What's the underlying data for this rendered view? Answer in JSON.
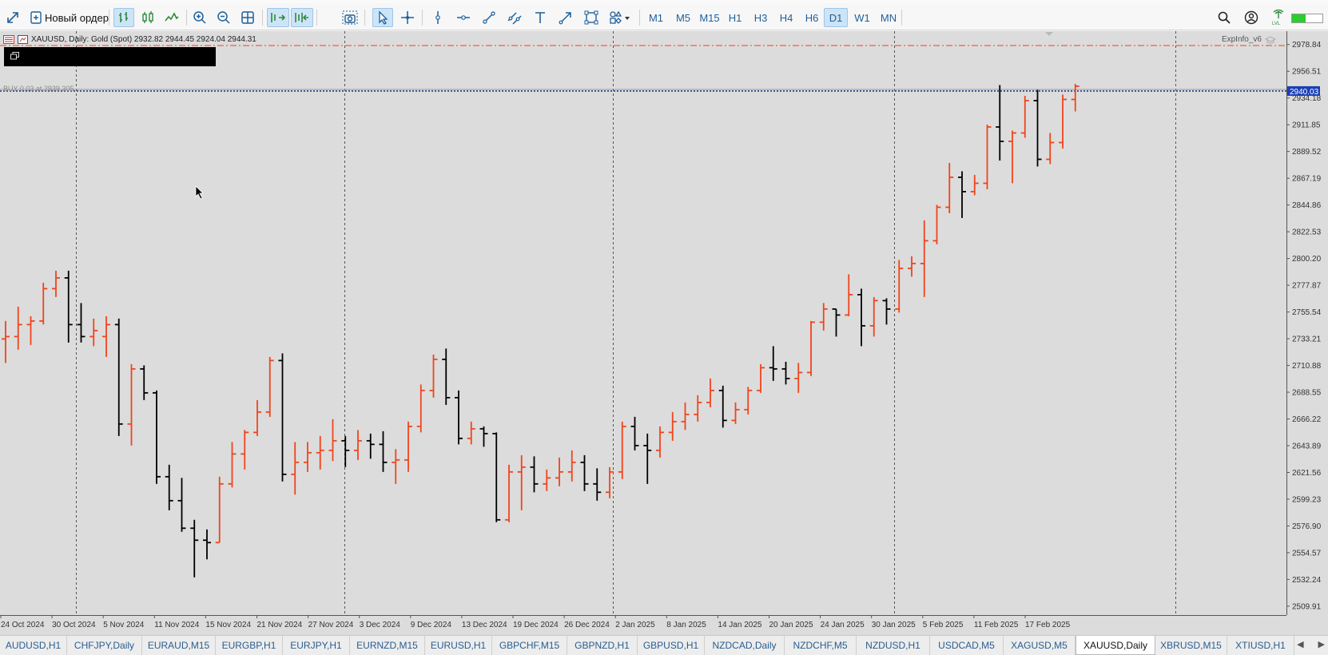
{
  "toolbar": {
    "new_order_label": "Новый ордер",
    "timeframes": [
      "M1",
      "M5",
      "M15",
      "H1",
      "H3",
      "H4",
      "H6",
      "D1",
      "W1",
      "MN"
    ],
    "active_timeframe": "D1"
  },
  "chart": {
    "symbol_info": "XAUUSD, Daily:  Gold (Spot)  2932.82 2944.45 2924.04 2944.31",
    "indicator_label": "ExpInfo_v6",
    "position_label": "BUY 0.03 at 2939.305",
    "current_price": "2940.03",
    "price_levels": [
      "2978.84",
      "2956.51",
      "2934.18",
      "2911.85",
      "2889.52",
      "2867.19",
      "2844.86",
      "2822.53",
      "2800.20",
      "2777.87",
      "2755.54",
      "2733.21",
      "2710.88",
      "2688.55",
      "2666.22",
      "2643.89",
      "2621.56",
      "2599.23",
      "2576.90",
      "2554.57",
      "2532.24",
      "2509.91"
    ],
    "date_labels": [
      "24 Oct 2024",
      "30 Oct 2024",
      "5 Nov 2024",
      "11 Nov 2024",
      "15 Nov 2024",
      "21 Nov 2024",
      "27 Nov 2024",
      "3 Dec 2024",
      "9 Dec 2024",
      "13 Dec 2024",
      "19 Dec 2024",
      "26 Dec 2024",
      "2 Jan 2025",
      "8 Jan 2025",
      "14 Jan 2025",
      "20 Jan 2025",
      "24 Jan 2025",
      "30 Jan 2025",
      "5 Feb 2025",
      "11 Feb 2025",
      "17 Feb 2025"
    ],
    "colors": {
      "bull": "#f0441c",
      "bear": "#000000",
      "background": "#dcdcdc",
      "current_price_line": "#1a3a8a",
      "target_line": "#f0441c"
    }
  },
  "chart_data": {
    "type": "ohlc",
    "symbol": "XAUUSD",
    "timeframe": "Daily",
    "ylim": [
      2500,
      2990
    ],
    "target_level": 2978,
    "current_price": 2940.03,
    "bars": [
      {
        "o": 2733,
        "h": 2748,
        "l": 2713,
        "c": 2735
      },
      {
        "o": 2735,
        "h": 2760,
        "l": 2724,
        "c": 2745
      },
      {
        "o": 2745,
        "h": 2752,
        "l": 2728,
        "c": 2748
      },
      {
        "o": 2748,
        "h": 2780,
        "l": 2745,
        "c": 2775
      },
      {
        "o": 2775,
        "h": 2790,
        "l": 2768,
        "c": 2784
      },
      {
        "o": 2784,
        "h": 2790,
        "l": 2730,
        "c": 2745
      },
      {
        "o": 2745,
        "h": 2763,
        "l": 2730,
        "c": 2735
      },
      {
        "o": 2735,
        "h": 2750,
        "l": 2727,
        "c": 2740
      },
      {
        "o": 2735,
        "h": 2752,
        "l": 2718,
        "c": 2745
      },
      {
        "o": 2745,
        "h": 2750,
        "l": 2652,
        "c": 2662
      },
      {
        "o": 2662,
        "h": 2712,
        "l": 2644,
        "c": 2708
      },
      {
        "o": 2708,
        "h": 2711,
        "l": 2682,
        "c": 2688
      },
      {
        "o": 2688,
        "h": 2690,
        "l": 2612,
        "c": 2618
      },
      {
        "o": 2618,
        "h": 2628,
        "l": 2590,
        "c": 2598
      },
      {
        "o": 2598,
        "h": 2617,
        "l": 2572,
        "c": 2575
      },
      {
        "o": 2575,
        "h": 2582,
        "l": 2534,
        "c": 2565
      },
      {
        "o": 2565,
        "h": 2574,
        "l": 2549,
        "c": 2563
      },
      {
        "o": 2563,
        "h": 2618,
        "l": 2563,
        "c": 2612
      },
      {
        "o": 2612,
        "h": 2647,
        "l": 2609,
        "c": 2637
      },
      {
        "o": 2637,
        "h": 2657,
        "l": 2624,
        "c": 2655
      },
      {
        "o": 2655,
        "h": 2682,
        "l": 2652,
        "c": 2672
      },
      {
        "o": 2672,
        "h": 2718,
        "l": 2668,
        "c": 2715
      },
      {
        "o": 2715,
        "h": 2721,
        "l": 2614,
        "c": 2620
      },
      {
        "o": 2620,
        "h": 2647,
        "l": 2603,
        "c": 2630
      },
      {
        "o": 2630,
        "h": 2647,
        "l": 2622,
        "c": 2638
      },
      {
        "o": 2638,
        "h": 2652,
        "l": 2624,
        "c": 2640
      },
      {
        "o": 2640,
        "h": 2666,
        "l": 2631,
        "c": 2648
      },
      {
        "o": 2648,
        "h": 2652,
        "l": 2626,
        "c": 2640
      },
      {
        "o": 2640,
        "h": 2657,
        "l": 2632,
        "c": 2648
      },
      {
        "o": 2648,
        "h": 2654,
        "l": 2633,
        "c": 2645
      },
      {
        "o": 2645,
        "h": 2656,
        "l": 2622,
        "c": 2630
      },
      {
        "o": 2630,
        "h": 2641,
        "l": 2612,
        "c": 2632
      },
      {
        "o": 2632,
        "h": 2664,
        "l": 2622,
        "c": 2660
      },
      {
        "o": 2660,
        "h": 2695,
        "l": 2655,
        "c": 2690
      },
      {
        "o": 2690,
        "h": 2720,
        "l": 2684,
        "c": 2716
      },
      {
        "o": 2716,
        "h": 2725,
        "l": 2678,
        "c": 2684
      },
      {
        "o": 2684,
        "h": 2690,
        "l": 2645,
        "c": 2650
      },
      {
        "o": 2650,
        "h": 2664,
        "l": 2645,
        "c": 2658
      },
      {
        "o": 2658,
        "h": 2660,
        "l": 2643,
        "c": 2654
      },
      {
        "o": 2654,
        "h": 2655,
        "l": 2580,
        "c": 2582
      },
      {
        "o": 2582,
        "h": 2628,
        "l": 2580,
        "c": 2622
      },
      {
        "o": 2622,
        "h": 2636,
        "l": 2590,
        "c": 2626
      },
      {
        "o": 2626,
        "h": 2635,
        "l": 2605,
        "c": 2612
      },
      {
        "o": 2612,
        "h": 2624,
        "l": 2606,
        "c": 2617
      },
      {
        "o": 2617,
        "h": 2634,
        "l": 2610,
        "c": 2622
      },
      {
        "o": 2622,
        "h": 2640,
        "l": 2614,
        "c": 2630
      },
      {
        "o": 2630,
        "h": 2636,
        "l": 2606,
        "c": 2612
      },
      {
        "o": 2612,
        "h": 2625,
        "l": 2598,
        "c": 2605
      },
      {
        "o": 2605,
        "h": 2626,
        "l": 2600,
        "c": 2622
      },
      {
        "o": 2622,
        "h": 2664,
        "l": 2616,
        "c": 2660
      },
      {
        "o": 2660,
        "h": 2668,
        "l": 2640,
        "c": 2644
      },
      {
        "o": 2644,
        "h": 2654,
        "l": 2612,
        "c": 2640
      },
      {
        "o": 2640,
        "h": 2660,
        "l": 2634,
        "c": 2655
      },
      {
        "o": 2655,
        "h": 2672,
        "l": 2648,
        "c": 2664
      },
      {
        "o": 2664,
        "h": 2680,
        "l": 2657,
        "c": 2670
      },
      {
        "o": 2670,
        "h": 2686,
        "l": 2664,
        "c": 2680
      },
      {
        "o": 2680,
        "h": 2700,
        "l": 2676,
        "c": 2690
      },
      {
        "o": 2690,
        "h": 2694,
        "l": 2659,
        "c": 2665
      },
      {
        "o": 2665,
        "h": 2680,
        "l": 2662,
        "c": 2674
      },
      {
        "o": 2674,
        "h": 2693,
        "l": 2670,
        "c": 2690
      },
      {
        "o": 2690,
        "h": 2712,
        "l": 2688,
        "c": 2709
      },
      {
        "o": 2709,
        "h": 2727,
        "l": 2698,
        "c": 2708
      },
      {
        "o": 2708,
        "h": 2714,
        "l": 2695,
        "c": 2700
      },
      {
        "o": 2700,
        "h": 2713,
        "l": 2688,
        "c": 2705
      },
      {
        "o": 2705,
        "h": 2748,
        "l": 2702,
        "c": 2747
      },
      {
        "o": 2747,
        "h": 2763,
        "l": 2740,
        "c": 2758
      },
      {
        "o": 2758,
        "h": 2758,
        "l": 2735,
        "c": 2753
      },
      {
        "o": 2753,
        "h": 2787,
        "l": 2752,
        "c": 2770
      },
      {
        "o": 2770,
        "h": 2775,
        "l": 2727,
        "c": 2744
      },
      {
        "o": 2744,
        "h": 2768,
        "l": 2735,
        "c": 2765
      },
      {
        "o": 2765,
        "h": 2767,
        "l": 2745,
        "c": 2758
      },
      {
        "o": 2758,
        "h": 2799,
        "l": 2755,
        "c": 2792
      },
      {
        "o": 2792,
        "h": 2802,
        "l": 2785,
        "c": 2796
      },
      {
        "o": 2796,
        "h": 2832,
        "l": 2768,
        "c": 2815
      },
      {
        "o": 2815,
        "h": 2845,
        "l": 2812,
        "c": 2843
      },
      {
        "o": 2843,
        "h": 2880,
        "l": 2838,
        "c": 2868
      },
      {
        "o": 2868,
        "h": 2873,
        "l": 2834,
        "c": 2856
      },
      {
        "o": 2856,
        "h": 2870,
        "l": 2853,
        "c": 2863
      },
      {
        "o": 2863,
        "h": 2912,
        "l": 2858,
        "c": 2910
      },
      {
        "o": 2910,
        "h": 2945,
        "l": 2882,
        "c": 2898
      },
      {
        "o": 2898,
        "h": 2907,
        "l": 2863,
        "c": 2905
      },
      {
        "o": 2905,
        "h": 2936,
        "l": 2901,
        "c": 2932
      },
      {
        "o": 2932,
        "h": 2941,
        "l": 2877,
        "c": 2883
      },
      {
        "o": 2883,
        "h": 2905,
        "l": 2879,
        "c": 2897
      },
      {
        "o": 2897,
        "h": 2937,
        "l": 2892,
        "c": 2933
      },
      {
        "o": 2933,
        "h": 2946,
        "l": 2923,
        "c": 2944
      }
    ]
  },
  "tabs": {
    "items": [
      "AUDUSD,H1",
      "CHFJPY,Daily",
      "EURAUD,M15",
      "EURGBP,H1",
      "EURJPY,H1",
      "EURNZD,M15",
      "EURUSD,H1",
      "GBPCHF,M15",
      "GBPNZD,H1",
      "GBPUSD,H1",
      "NZDCAD,Daily",
      "NZDCHF,M5",
      "NZDUSD,H1",
      "USDCAD,M5",
      "XAGUSD,M5",
      "XAUUSD,Daily",
      "XBRUSD,M15",
      "XTIUSD,H1"
    ],
    "active": "XAUUSD,Daily"
  }
}
